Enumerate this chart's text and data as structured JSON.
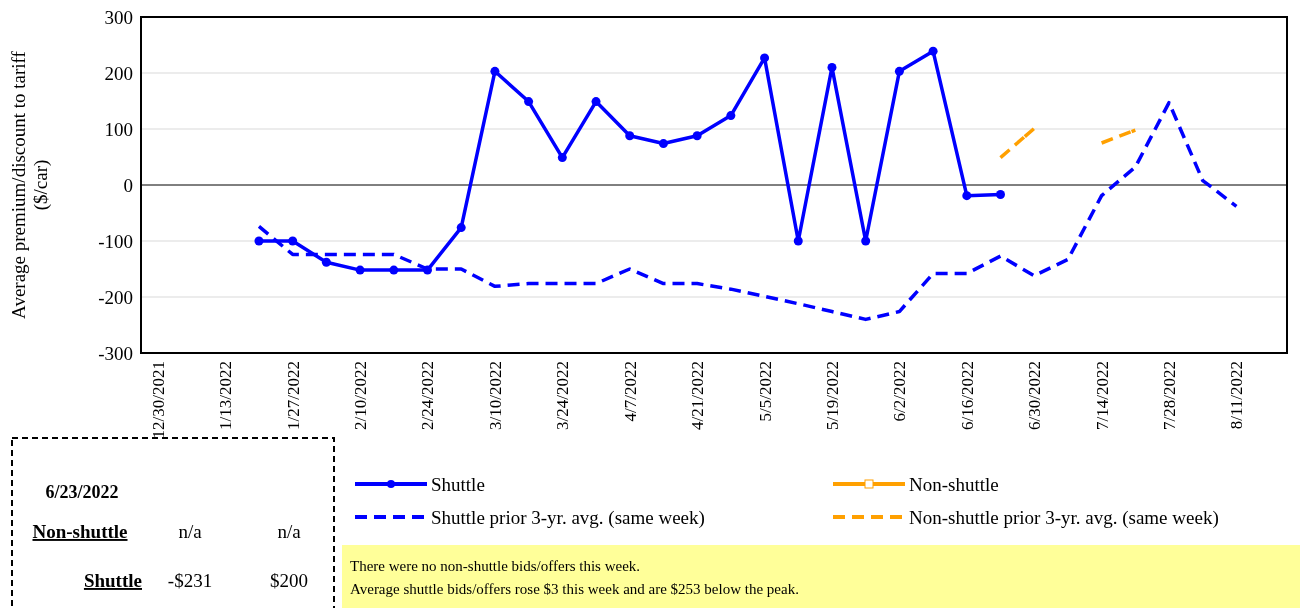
{
  "chart_data": {
    "type": "line",
    "ylabel": "Average premium/discount to tariff ($/car)",
    "categories": [
      "12/30/2021",
      null,
      "1/13/2022",
      null,
      "1/27/2022",
      null,
      "2/10/2022",
      null,
      "2/24/2022",
      null,
      "3/10/2022",
      null,
      "3/24/2022",
      null,
      "4/7/2022",
      null,
      "4/21/2022",
      null,
      "5/5/2022",
      null,
      "5/19/2022",
      null,
      "6/2/2022",
      null,
      "6/16/2022",
      null,
      "6/30/2022",
      null,
      "7/14/2022",
      null,
      "7/28/2022",
      null,
      "8/11/2022",
      null
    ],
    "series": [
      {
        "name": "Shuttle",
        "color": "#0000ff",
        "marker": "circle",
        "line_style": "solid",
        "values": [
          null,
          null,
          null,
          -100,
          -100,
          -138,
          -152,
          -152,
          -152,
          -76,
          203,
          149,
          49,
          149,
          88,
          74,
          88,
          124,
          227,
          -100,
          210,
          -100,
          203,
          239,
          -19,
          -17,
          null,
          null,
          null,
          null,
          null,
          null,
          null,
          null
        ]
      },
      {
        "name": "Non-shuttle",
        "color": "#ffa000",
        "marker": "square",
        "line_style": "solid",
        "values": [
          null,
          null,
          null,
          null,
          null,
          null,
          null,
          null,
          null,
          null,
          null,
          null,
          null,
          null,
          null,
          null,
          null,
          null,
          null,
          null,
          null,
          null,
          null,
          null,
          null,
          null,
          null,
          null,
          null,
          null,
          null,
          null,
          null,
          null
        ]
      },
      {
        "name": "Shuttle prior 3-yr. avg. (same week)",
        "color": "#0000ff",
        "marker": "none",
        "line_style": "dashed",
        "values": [
          null,
          null,
          null,
          -74,
          -124,
          -124,
          -124,
          -124,
          -150,
          -150,
          -181,
          -176,
          -176,
          -176,
          -150,
          -176,
          -176,
          -186,
          -199,
          -212,
          -226,
          -240,
          -226,
          -158,
          -158,
          -127,
          -162,
          -133,
          -19,
          32,
          147,
          8,
          -38,
          null
        ]
      },
      {
        "name": "Non-shuttle prior 3-yr. avg. (same week)",
        "color": "#ffa000",
        "marker": "none",
        "line_style": "dashed",
        "values": [
          null,
          null,
          null,
          null,
          null,
          null,
          null,
          null,
          null,
          null,
          null,
          null,
          null,
          null,
          null,
          null,
          null,
          null,
          null,
          null,
          null,
          null,
          null,
          null,
          null,
          49,
          101,
          null,
          75,
          98,
          null,
          null,
          null,
          null
        ]
      }
    ],
    "ylim": [
      -300,
      300
    ],
    "yticks": [
      -300,
      -200,
      -100,
      0,
      100,
      200,
      300
    ],
    "grid": "y",
    "legend": "bottom",
    "annotations": [
      "6/23/2022",
      "Non-shuttle",
      "n/a",
      "n/a",
      "Shuttle",
      "-$231",
      "$200",
      "There were no non-shuttle bids/offers  this week.",
      "Average shuttle bids/offers  rose $3 this week and are $253 below the peak."
    ]
  }
}
